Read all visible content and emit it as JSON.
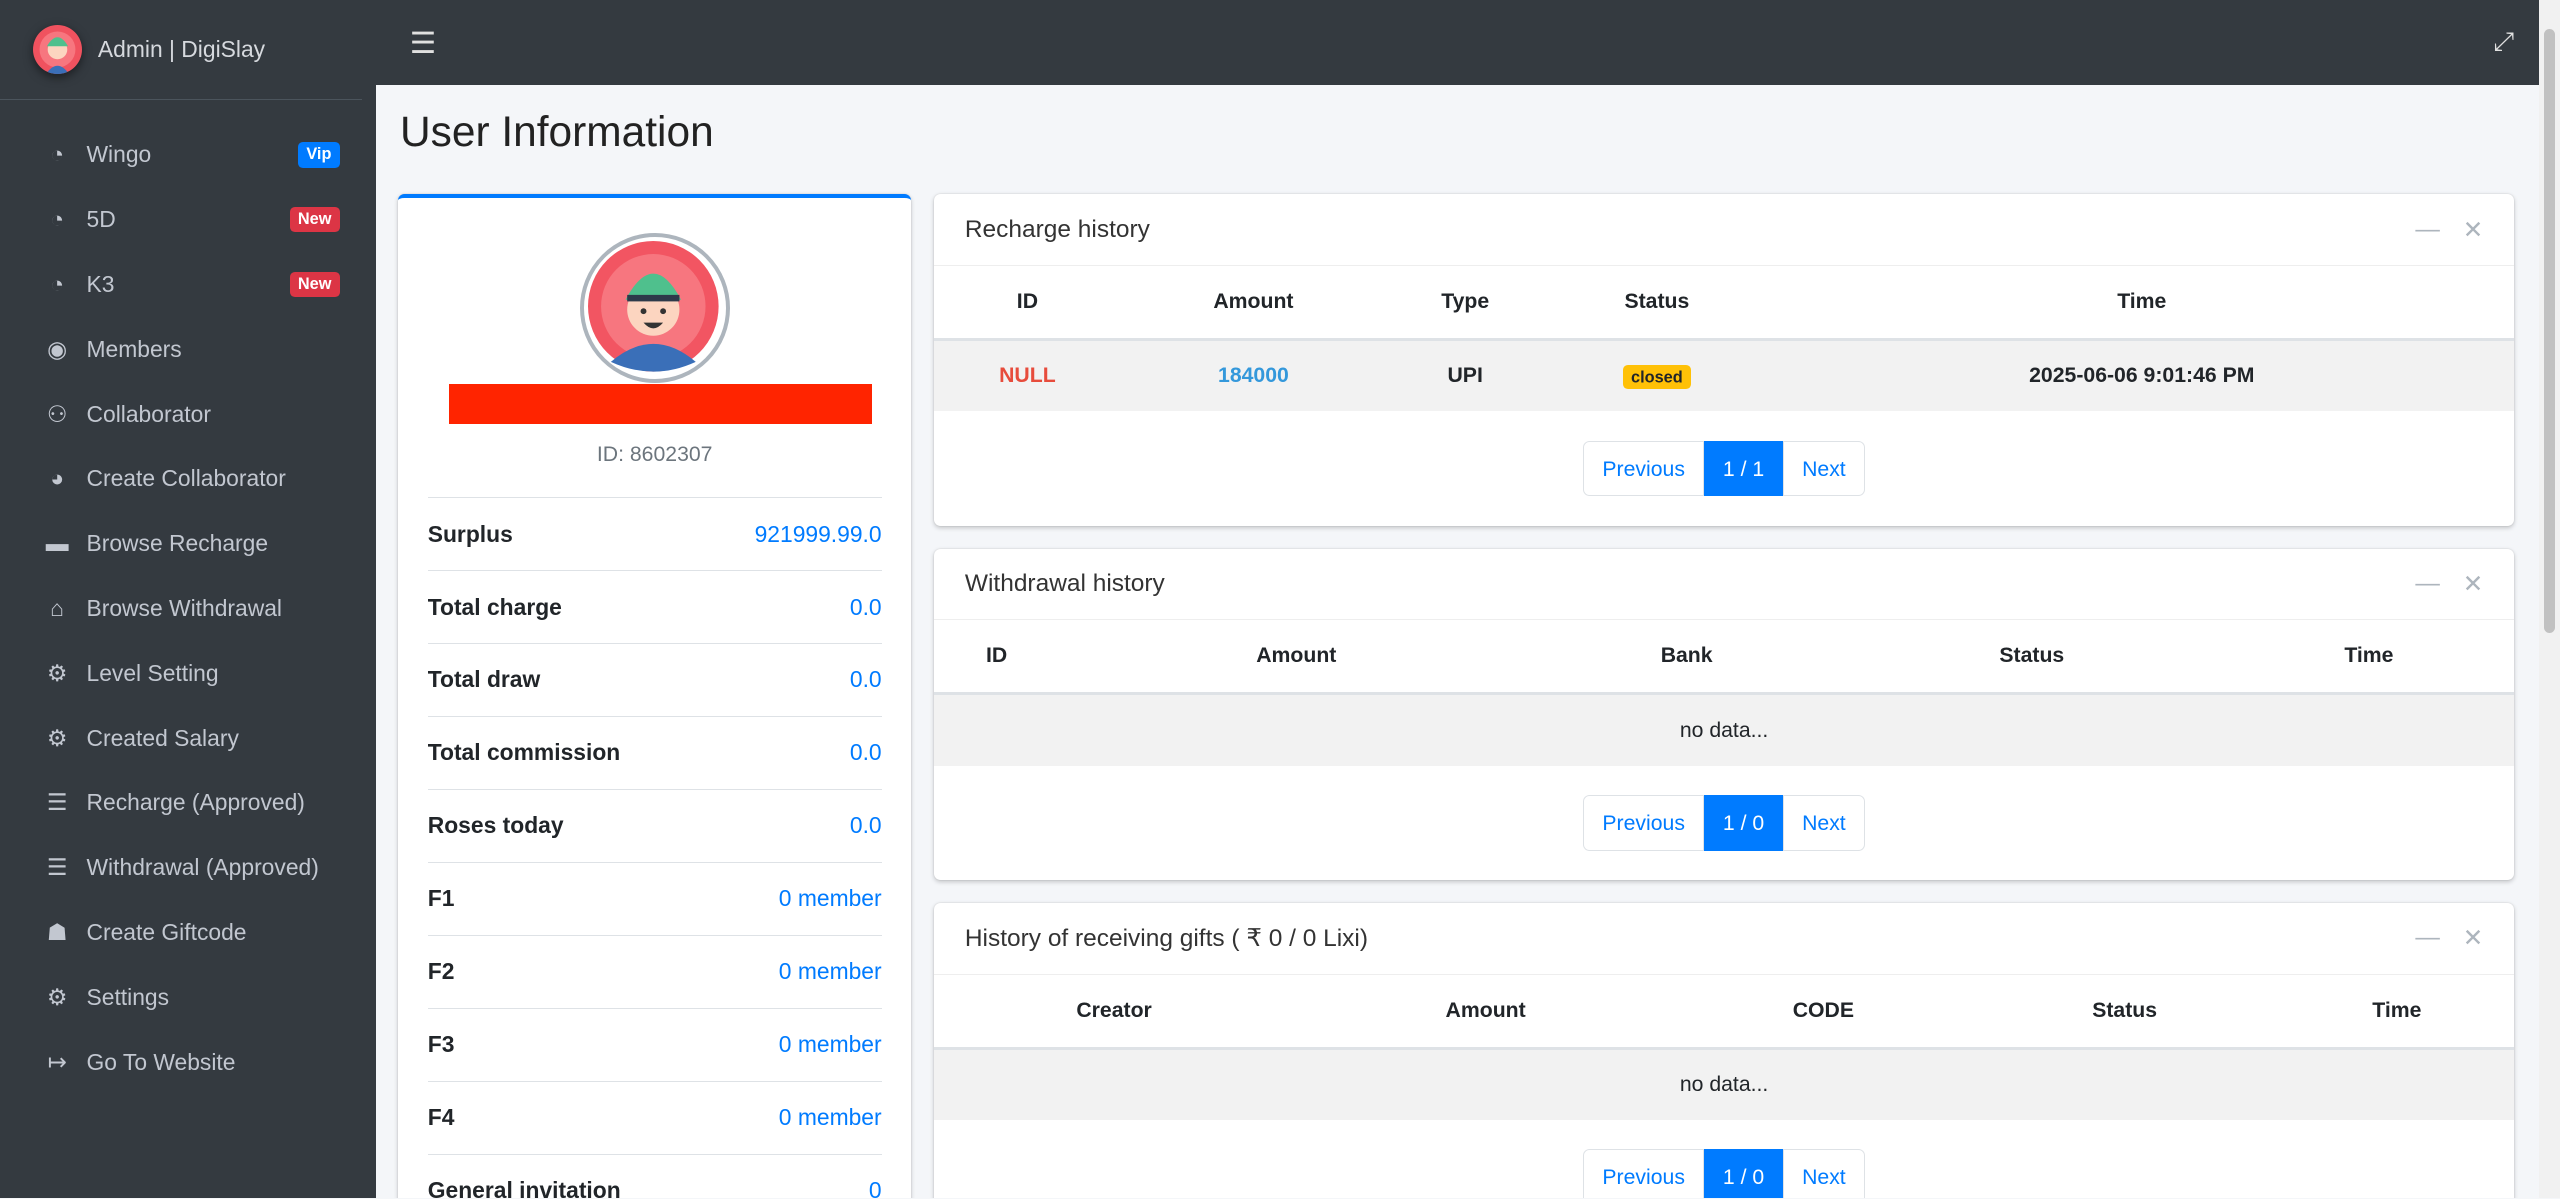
{
  "sidebar": {
    "brand": "Admin | DigiSlay",
    "items": [
      {
        "label": "Wingo",
        "icon": "tachometer-icon",
        "badge": "Vip",
        "badge_color": "#007bff"
      },
      {
        "label": "5D",
        "icon": "tachometer-icon",
        "badge": "New",
        "badge_color": "#dc3545"
      },
      {
        "label": "K3",
        "icon": "tachometer-icon",
        "badge": "New",
        "badge_color": "#dc3545"
      },
      {
        "label": "Members",
        "icon": "user-circle-icon"
      },
      {
        "label": "Collaborator",
        "icon": "users-icon"
      },
      {
        "label": "Create Collaborator",
        "icon": "pie-chart-icon"
      },
      {
        "label": "Browse Recharge",
        "icon": "credit-card-icon"
      },
      {
        "label": "Browse Withdrawal",
        "icon": "bank-icon"
      },
      {
        "label": "Level Setting",
        "icon": "cogs-icon"
      },
      {
        "label": "Created Salary",
        "icon": "cogs-icon"
      },
      {
        "label": "Recharge (Approved)",
        "icon": "list-icon"
      },
      {
        "label": "Withdrawal (Approved)",
        "icon": "list-icon"
      },
      {
        "label": "Create Giftcode",
        "icon": "gift-icon"
      },
      {
        "label": "Settings",
        "icon": "gear-icon"
      },
      {
        "label": "Go To Website",
        "icon": "sign-out-icon"
      }
    ]
  },
  "page": {
    "title": "User Information"
  },
  "profile": {
    "id": "ID: 8602307",
    "stats": [
      {
        "label": "Surplus",
        "value": "921999.99.0"
      },
      {
        "label": "Total charge",
        "value": "0.0"
      },
      {
        "label": "Total draw",
        "value": "0.0"
      },
      {
        "label": "Total commission",
        "value": "0.0"
      },
      {
        "label": "Roses today",
        "value": "0.0"
      },
      {
        "label": "F1",
        "value": "0 member"
      },
      {
        "label": "F2",
        "value": "0 member"
      },
      {
        "label": "F3",
        "value": "0 member"
      },
      {
        "label": "F4",
        "value": "0 member"
      },
      {
        "label": "General invitation",
        "value": "0"
      }
    ]
  },
  "recharge": {
    "title": "Recharge history",
    "columns": [
      "ID",
      "Amount",
      "Type",
      "Status",
      "Time"
    ],
    "row": {
      "id": "NULL",
      "amount": "184000",
      "type": "UPI",
      "status": "closed",
      "time": "2025-06-06 9:01:46 PM"
    },
    "pagination": {
      "prev": "Previous",
      "page": "1 / 1",
      "next": "Next"
    }
  },
  "withdrawal": {
    "title": "Withdrawal history",
    "columns": [
      "ID",
      "Amount",
      "Bank",
      "Status",
      "Time"
    ],
    "empty": "no data...",
    "pagination": {
      "prev": "Previous",
      "page": "1 / 0",
      "next": "Next"
    }
  },
  "gifts": {
    "title": "History of receiving gifts ( ₹ 0 / 0 Lixi)",
    "columns": [
      "Creator",
      "Amount",
      "CODE",
      "Status",
      "Time"
    ],
    "empty": "no data...",
    "pagination": {
      "prev": "Previous",
      "page": "1 / 0",
      "next": "Next"
    }
  },
  "colors": {
    "primary": "#007bff",
    "danger": "#e74c3c",
    "amount": "#3498db",
    "warning": "#ffc107",
    "sidebar": "#343a40"
  }
}
